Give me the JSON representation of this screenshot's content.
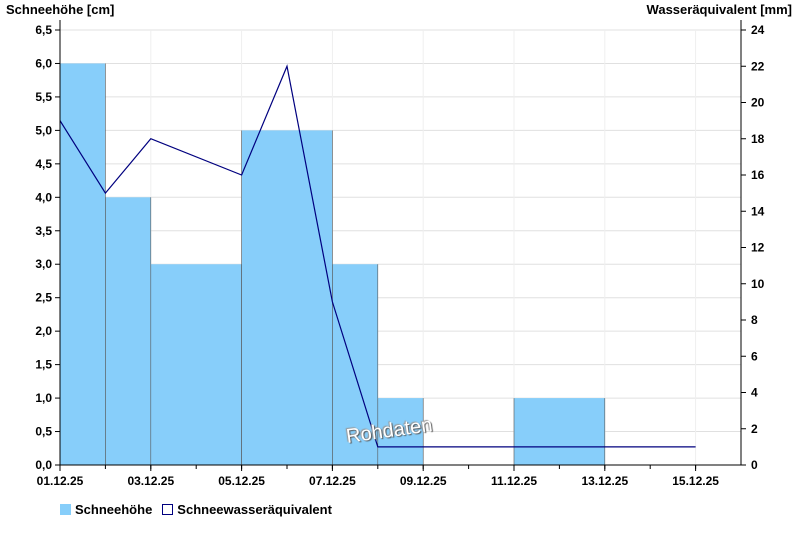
{
  "chart_data": {
    "type": "bar",
    "title": "",
    "left_axis_label": "Schneehöhe [cm]",
    "right_axis_label": "Wasseräquivalent [mm]",
    "dates": [
      "01.12.25",
      "02.12.25",
      "03.12.25",
      "04.12.25",
      "05.12.25",
      "06.12.25",
      "07.12.25",
      "08.12.25",
      "09.12.25",
      "10.12.25",
      "11.12.25",
      "12.12.25",
      "13.12.25",
      "14.12.25",
      "15.12.25"
    ],
    "x_tick_labels": [
      "01.12.25",
      "03.12.25",
      "05.12.25",
      "07.12.25",
      "09.12.25",
      "11.12.25",
      "13.12.25",
      "15.12.25"
    ],
    "left_ylim": [
      0,
      6.5
    ],
    "right_ylim": [
      0,
      24
    ],
    "left_ticks": [
      "0,0",
      "0,5",
      "1,0",
      "1,5",
      "2,0",
      "2,5",
      "3,0",
      "3,5",
      "4,0",
      "4,5",
      "5,0",
      "5,5",
      "6,0",
      "6,5"
    ],
    "right_ticks": [
      "0",
      "2",
      "4",
      "6",
      "8",
      "10",
      "12",
      "14",
      "16",
      "18",
      "20",
      "22",
      "24"
    ],
    "grid": true,
    "series": [
      {
        "name": "Schneehöhe",
        "kind": "bar",
        "axis": "left",
        "color": "#87cefa",
        "bars": [
          {
            "start": "01.12.25",
            "end": "02.12.25",
            "value": 6.0
          },
          {
            "start": "02.12.25",
            "end": "03.12.25",
            "value": 4.0
          },
          {
            "start": "03.12.25",
            "end": "05.12.25",
            "value": 3.0
          },
          {
            "start": "05.12.25",
            "end": "07.12.25",
            "value": 5.0
          },
          {
            "start": "07.12.25",
            "end": "08.12.25",
            "value": 3.0
          },
          {
            "start": "08.12.25",
            "end": "09.12.25",
            "value": 1.0
          },
          {
            "start": "11.12.25",
            "end": "13.12.25",
            "value": 1.0
          }
        ]
      },
      {
        "name": "Schneewasseräquivalent",
        "kind": "line",
        "axis": "right",
        "color": "#00007f",
        "points": [
          {
            "x": "01.12.25",
            "y": 19
          },
          {
            "x": "02.12.25",
            "y": 15
          },
          {
            "x": "03.12.25",
            "y": 18
          },
          {
            "x": "05.12.25",
            "y": 16
          },
          {
            "x": "06.12.25",
            "y": 22
          },
          {
            "x": "07.12.25",
            "y": 9
          },
          {
            "x": "08.12.25",
            "y": 1
          },
          {
            "x": "15.12.25",
            "y": 1
          }
        ]
      }
    ],
    "watermark": "Rohdaten"
  }
}
